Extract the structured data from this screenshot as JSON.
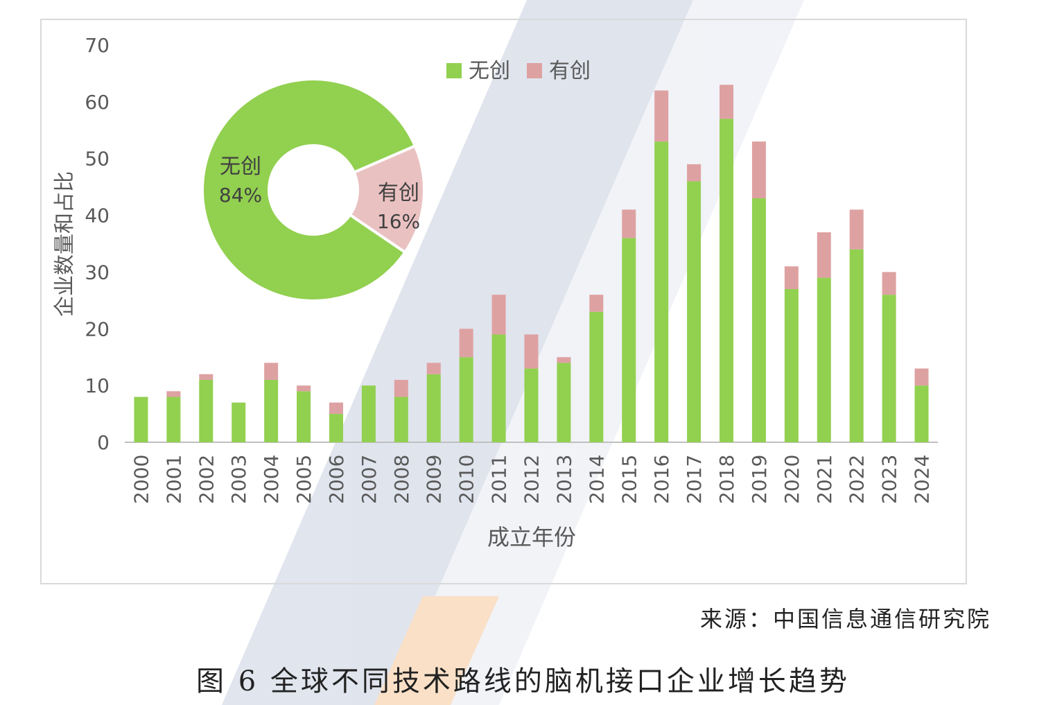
{
  "chart_data": {
    "type": "bar",
    "stacked": true,
    "xlabel": "成立年份",
    "ylabel": "企业数量和占比",
    "ylim": [
      0,
      70
    ],
    "yticks": [
      0,
      10,
      20,
      30,
      40,
      50,
      60,
      70
    ],
    "grid": false,
    "legend_position": "top-center",
    "categories": [
      "2000",
      "2001",
      "2002",
      "2003",
      "2004",
      "2005",
      "2006",
      "2007",
      "2008",
      "2009",
      "2010",
      "2011",
      "2012",
      "2013",
      "2014",
      "2015",
      "2016",
      "2017",
      "2018",
      "2019",
      "2020",
      "2021",
      "2022",
      "2023",
      "2024"
    ],
    "series": [
      {
        "name": "无创",
        "color": "#92d050",
        "values": [
          8,
          8,
          11,
          7,
          11,
          9,
          5,
          10,
          8,
          12,
          15,
          19,
          13,
          14,
          23,
          36,
          53,
          46,
          57,
          43,
          27,
          29,
          34,
          26,
          10
        ]
      },
      {
        "name": "有创",
        "color": "#dea1a2",
        "values": [
          0,
          1,
          1,
          0,
          3,
          1,
          2,
          0,
          3,
          2,
          5,
          7,
          6,
          1,
          3,
          5,
          9,
          3,
          6,
          10,
          4,
          8,
          7,
          4,
          3
        ]
      }
    ],
    "inset_pie": {
      "type": "pie",
      "slices": [
        {
          "label": "无创",
          "value_label": "84%",
          "value": 84,
          "color": "#92d050"
        },
        {
          "label": "有创",
          "value_label": "16%",
          "value": 16,
          "color": "#eac1c1"
        }
      ]
    }
  },
  "caption": {
    "source": "来源：中国信息通信研究院",
    "title": "图  6 全球不同技术路线的脑机接口企业增长趋势"
  }
}
